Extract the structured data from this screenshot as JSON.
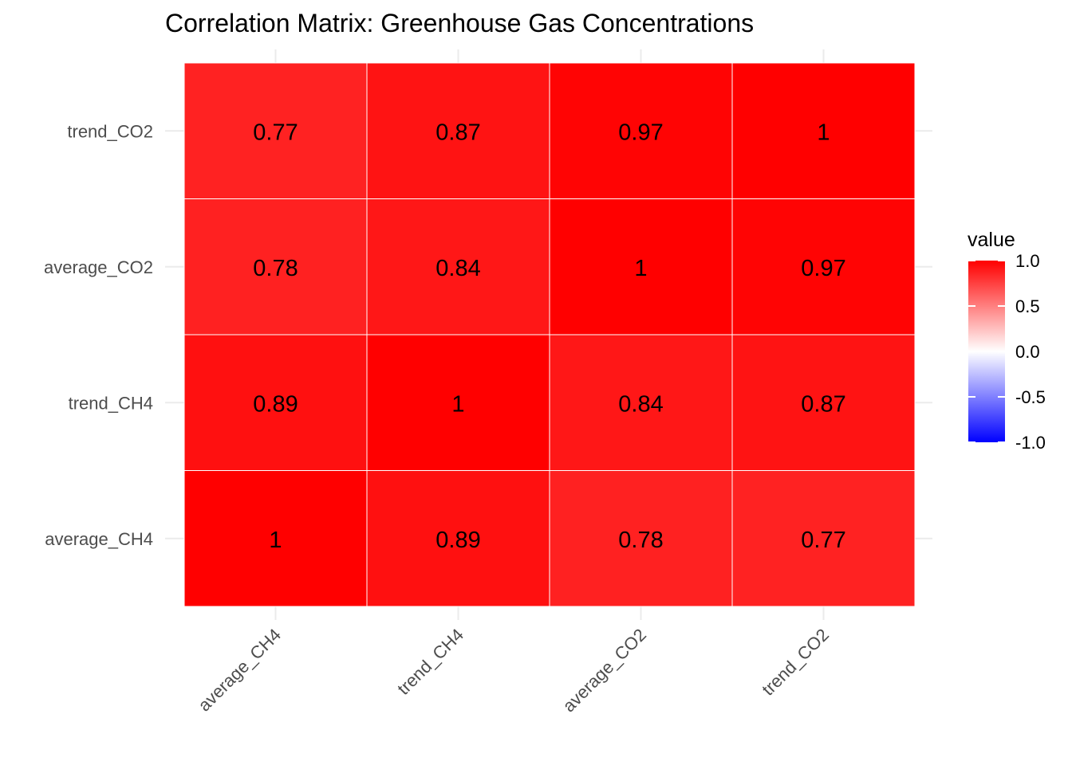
{
  "chart_data": {
    "type": "heatmap",
    "title": "Correlation Matrix: Greenhouse Gas Concentrations",
    "x_categories": [
      "average_CH4",
      "trend_CH4",
      "average_CO2",
      "trend_CO2"
    ],
    "y_categories": [
      "average_CH4",
      "trend_CH4",
      "average_CO2",
      "trend_CO2"
    ],
    "matrix": [
      [
        1,
        0.89,
        0.78,
        0.77
      ],
      [
        0.89,
        1,
        0.84,
        0.87
      ],
      [
        0.78,
        0.84,
        1,
        0.97
      ],
      [
        0.77,
        0.87,
        0.97,
        1
      ]
    ],
    "cell_labels": [
      [
        "1",
        "0.89",
        "0.78",
        "0.77"
      ],
      [
        "0.89",
        "1",
        "0.84",
        "0.87"
      ],
      [
        "0.78",
        "0.84",
        "1",
        "0.97"
      ],
      [
        "0.77",
        "0.87",
        "0.97",
        "1"
      ]
    ],
    "color_scale": {
      "low": "#0000FF",
      "mid": "#FFFFFF",
      "high": "#FF0000",
      "limits": [
        -1,
        1
      ]
    },
    "legend": {
      "title": "value",
      "ticks": [
        "1.0",
        "0.5",
        "0.0",
        "-0.5",
        "-1.0"
      ],
      "tick_values": [
        1,
        0.5,
        0,
        -0.5,
        -1
      ],
      "placement": "right"
    },
    "grid": true
  }
}
